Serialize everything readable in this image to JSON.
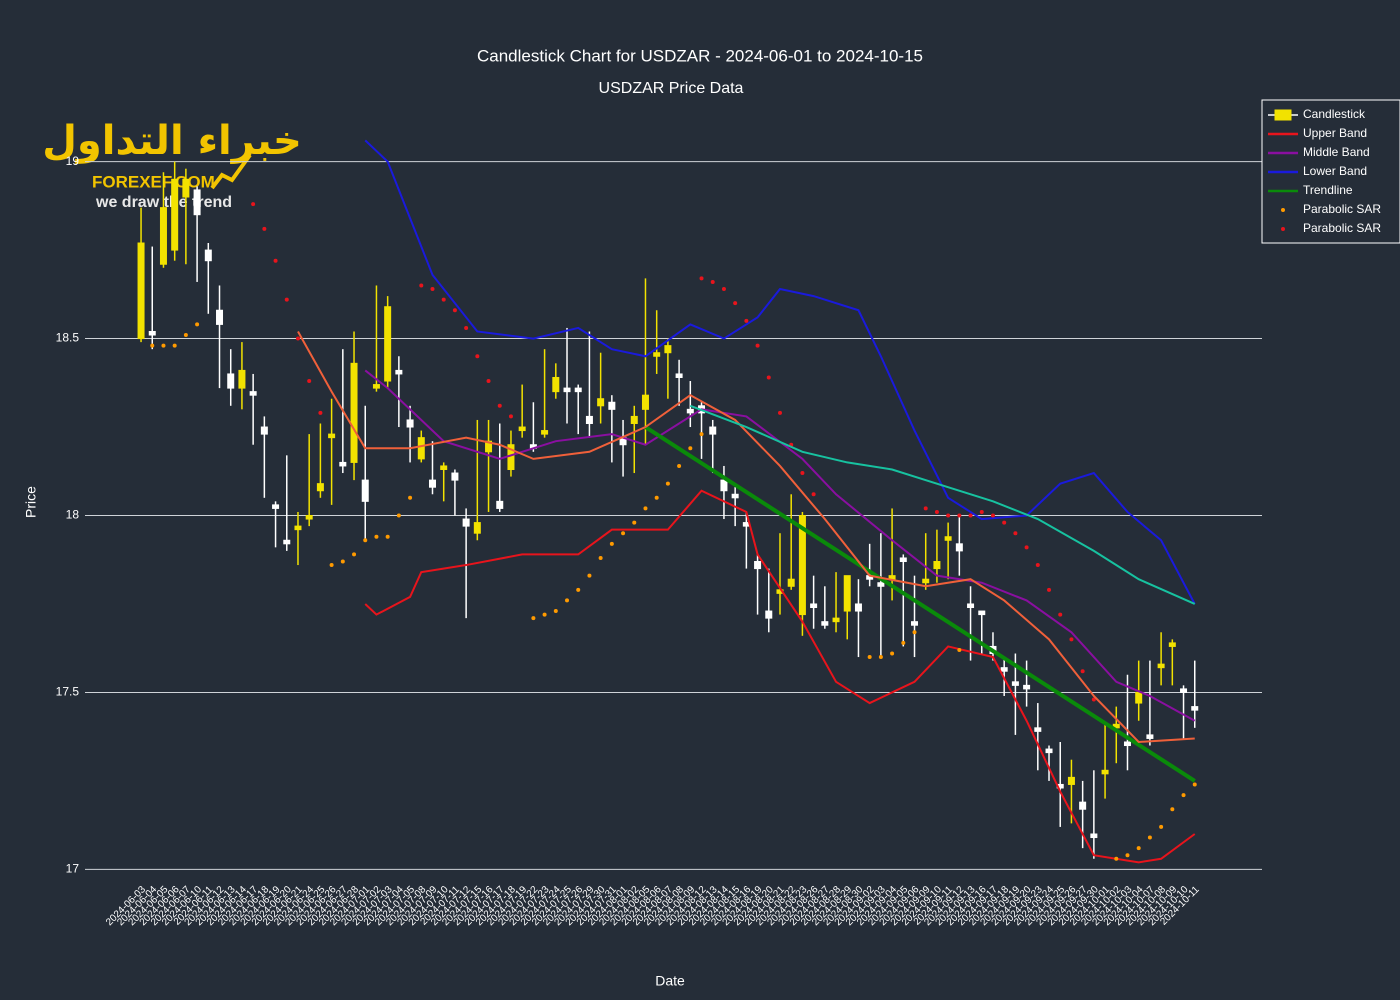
{
  "chart_data": {
    "type": "candlestick",
    "title": "Candlestick Chart for USDZAR - 2024-06-01 to 2024-10-15",
    "subtitle": "USDZAR Price Data",
    "x_label": "Date",
    "y_label": "Price",
    "name": "Candlestick",
    "increasing_color": "#f2e200",
    "decreasing_color": "#ffffff",
    "legend": "upper right",
    "grid": true,
    "ylim": [
      16.97,
      19.16
    ],
    "yticks": [
      17,
      17.5,
      18,
      18.5,
      19
    ],
    "categories": [
      "2024-06-03",
      "2024-06-04",
      "2024-06-05",
      "2024-06-06",
      "2024-06-07",
      "2024-06-10",
      "2024-06-11",
      "2024-06-12",
      "2024-06-13",
      "2024-06-14",
      "2024-06-17",
      "2024-06-18",
      "2024-06-19",
      "2024-06-20",
      "2024-06-21",
      "2024-06-24",
      "2024-06-25",
      "2024-06-26",
      "2024-06-27",
      "2024-06-28",
      "2024-07-01",
      "2024-07-02",
      "2024-07-03",
      "2024-07-04",
      "2024-07-05",
      "2024-07-08",
      "2024-07-09",
      "2024-07-10",
      "2024-07-11",
      "2024-07-12",
      "2024-07-15",
      "2024-07-16",
      "2024-07-17",
      "2024-07-18",
      "2024-07-19",
      "2024-07-22",
      "2024-07-23",
      "2024-07-24",
      "2024-07-25",
      "2024-07-26",
      "2024-07-29",
      "2024-07-30",
      "2024-07-31",
      "2024-08-01",
      "2024-08-02",
      "2024-08-05",
      "2024-08-06",
      "2024-08-07",
      "2024-08-08",
      "2024-08-09",
      "2024-08-12",
      "2024-08-13",
      "2024-08-14",
      "2024-08-15",
      "2024-08-16",
      "2024-08-19",
      "2024-08-20",
      "2024-08-21",
      "2024-08-22",
      "2024-08-23",
      "2024-08-26",
      "2024-08-27",
      "2024-08-28",
      "2024-08-29",
      "2024-08-30",
      "2024-09-02",
      "2024-09-03",
      "2024-09-04",
      "2024-09-05",
      "2024-09-06",
      "2024-09-09",
      "2024-09-10",
      "2024-09-11",
      "2024-09-12",
      "2024-09-13",
      "2024-09-16",
      "2024-09-17",
      "2024-09-18",
      "2024-09-19",
      "2024-09-20",
      "2024-09-23",
      "2024-09-24",
      "2024-09-25",
      "2024-09-26",
      "2024-09-27",
      "2024-09-30",
      "2024-10-01",
      "2024-10-02",
      "2024-10-03",
      "2024-10-04",
      "2024-10-07",
      "2024-10-08",
      "2024-10-09",
      "2024-10-10",
      "2024-10-11"
    ],
    "open": [
      18.5,
      18.52,
      18.71,
      18.75,
      18.9,
      18.92,
      18.75,
      18.58,
      18.4,
      18.36,
      18.35,
      18.25,
      18.03,
      17.93,
      17.96,
      17.99,
      18.07,
      18.22,
      18.15,
      18.15,
      18.1,
      18.36,
      18.38,
      18.41,
      18.27,
      18.16,
      18.1,
      18.13,
      18.12,
      17.99,
      17.95,
      18.18,
      18.04,
      18.13,
      18.24,
      18.2,
      18.23,
      18.35,
      18.36,
      18.36,
      18.28,
      18.31,
      18.32,
      18.22,
      18.26,
      18.3,
      18.45,
      18.46,
      18.4,
      18.3,
      18.31,
      18.25,
      18.1,
      18.06,
      17.98,
      17.87,
      17.73,
      17.78,
      17.8,
      17.72,
      17.75,
      17.7,
      17.7,
      17.73,
      17.75,
      17.83,
      17.81,
      17.82,
      17.88,
      17.7,
      17.81,
      17.85,
      17.93,
      17.92,
      17.75,
      17.73,
      17.63,
      17.57,
      17.53,
      17.52,
      17.4,
      17.34,
      17.24,
      17.24,
      17.19,
      17.1,
      17.27,
      17.4,
      17.36,
      17.47,
      17.38,
      17.57,
      17.63,
      17.51,
      17.46
    ],
    "high": [
      18.87,
      18.76,
      18.97,
      19.0,
      18.98,
      18.93,
      18.77,
      18.65,
      18.47,
      18.49,
      18.4,
      18.28,
      18.04,
      18.17,
      18.01,
      18.23,
      18.26,
      18.33,
      18.47,
      18.52,
      18.31,
      18.65,
      18.62,
      18.45,
      18.31,
      18.24,
      18.21,
      18.15,
      18.13,
      18.02,
      18.27,
      18.27,
      18.26,
      18.24,
      18.37,
      18.32,
      18.47,
      18.43,
      18.53,
      18.37,
      18.52,
      18.46,
      18.34,
      18.27,
      18.31,
      18.67,
      18.58,
      18.5,
      18.44,
      18.38,
      18.32,
      18.27,
      18.14,
      18.08,
      18.01,
      17.89,
      17.85,
      17.95,
      18.06,
      18.01,
      17.83,
      17.8,
      17.84,
      17.83,
      17.82,
      17.92,
      17.95,
      18.02,
      17.89,
      17.83,
      17.95,
      17.96,
      17.98,
      18.0,
      17.8,
      17.73,
      17.67,
      17.6,
      17.61,
      17.59,
      17.47,
      17.35,
      17.36,
      17.31,
      17.25,
      17.28,
      17.41,
      17.46,
      17.55,
      17.59,
      17.59,
      17.67,
      17.65,
      17.52,
      17.59
    ],
    "low": [
      18.49,
      18.47,
      18.7,
      18.72,
      18.71,
      18.66,
      18.57,
      18.36,
      18.31,
      18.3,
      18.2,
      18.05,
      17.91,
      17.9,
      17.86,
      17.97,
      18.05,
      18.03,
      18.12,
      18.1,
      17.93,
      18.35,
      18.36,
      18.25,
      18.15,
      18.15,
      18.06,
      18.04,
      18.0,
      17.71,
      17.93,
      18.01,
      18.01,
      18.11,
      18.22,
      18.18,
      18.22,
      18.33,
      18.26,
      18.23,
      18.22,
      18.26,
      18.15,
      18.11,
      18.12,
      18.2,
      18.4,
      18.33,
      18.31,
      18.25,
      18.16,
      18.12,
      17.99,
      17.97,
      17.85,
      17.72,
      17.67,
      17.72,
      17.79,
      17.66,
      17.68,
      17.68,
      17.67,
      17.65,
      17.6,
      17.8,
      17.6,
      17.76,
      17.63,
      17.6,
      17.79,
      17.81,
      17.82,
      17.83,
      17.59,
      17.61,
      17.59,
      17.49,
      17.38,
      17.46,
      17.28,
      17.25,
      17.12,
      17.13,
      17.06,
      17.03,
      17.2,
      17.3,
      17.28,
      17.42,
      17.35,
      17.52,
      17.52,
      17.37,
      17.4
    ],
    "close": [
      18.77,
      18.51,
      18.87,
      18.95,
      18.95,
      18.85,
      18.72,
      18.54,
      18.36,
      18.41,
      18.34,
      18.23,
      18.02,
      17.92,
      17.97,
      18.0,
      18.09,
      18.23,
      18.14,
      18.43,
      18.04,
      18.37,
      18.59,
      18.4,
      18.25,
      18.22,
      18.08,
      18.14,
      18.1,
      17.97,
      17.98,
      18.21,
      18.02,
      18.2,
      18.25,
      18.19,
      18.24,
      18.39,
      18.35,
      18.35,
      18.26,
      18.33,
      18.3,
      18.2,
      18.28,
      18.34,
      18.46,
      18.48,
      18.39,
      18.29,
      18.29,
      18.23,
      18.07,
      18.05,
      17.97,
      17.85,
      17.71,
      17.79,
      17.82,
      18.0,
      17.74,
      17.69,
      17.71,
      17.83,
      17.73,
      17.82,
      17.8,
      17.83,
      17.87,
      17.69,
      17.82,
      17.87,
      17.94,
      17.9,
      17.74,
      17.72,
      17.61,
      17.56,
      17.52,
      17.51,
      17.39,
      17.33,
      17.23,
      17.26,
      17.17,
      17.09,
      17.28,
      17.41,
      17.35,
      17.5,
      17.37,
      17.58,
      17.64,
      17.5,
      17.45
    ],
    "series": [
      {
        "name": "Upper Band",
        "mode": "line",
        "color": "#e8141c",
        "x": [
          "2024-07-01",
          "2024-07-02",
          "2024-07-05",
          "2024-07-08",
          "2024-07-12",
          "2024-07-19",
          "2024-07-26",
          "2024-07-31",
          "2024-08-07",
          "2024-08-12",
          "2024-08-16",
          "2024-08-19",
          "2024-08-23",
          "2024-08-28",
          "2024-09-02",
          "2024-09-06",
          "2024-09-11",
          "2024-09-17",
          "2024-09-20",
          "2024-09-25",
          "2024-09-30",
          "2024-10-04",
          "2024-10-08",
          "2024-10-11"
        ],
        "values": [
          17.75,
          17.72,
          17.77,
          17.84,
          17.86,
          17.89,
          17.89,
          17.96,
          17.96,
          18.07,
          18.01,
          17.89,
          17.7,
          17.53,
          17.47,
          17.53,
          17.63,
          17.6,
          17.42,
          17.22,
          17.04,
          17.02,
          17.03,
          17.1
        ]
      },
      {
        "name": "Middle Band",
        "mode": "line",
        "color": "#8a0fa0",
        "x": [
          "2024-07-01",
          "2024-07-03",
          "2024-07-10",
          "2024-07-17",
          "2024-07-24",
          "2024-07-31",
          "2024-08-05",
          "2024-08-12",
          "2024-08-16",
          "2024-08-23",
          "2024-08-28",
          "2024-09-04",
          "2024-09-10",
          "2024-09-16",
          "2024-09-20",
          "2024-09-26",
          "2024-10-02",
          "2024-10-07",
          "2024-10-11"
        ],
        "values": [
          18.41,
          18.36,
          18.21,
          18.16,
          18.21,
          18.23,
          18.2,
          18.3,
          18.28,
          18.16,
          18.06,
          17.93,
          17.83,
          17.81,
          17.76,
          17.67,
          17.53,
          17.49,
          17.42
        ]
      },
      {
        "name": "Lower Band",
        "mode": "line",
        "color": "#1a1adc",
        "x": [
          "2024-07-01",
          "2024-07-03",
          "2024-07-05",
          "2024-07-09",
          "2024-07-15",
          "2024-07-22",
          "2024-07-26",
          "2024-07-31",
          "2024-08-05",
          "2024-08-09",
          "2024-08-14",
          "2024-08-19",
          "2024-08-21",
          "2024-08-26",
          "2024-08-30",
          "2024-09-03",
          "2024-09-06",
          "2024-09-11",
          "2024-09-16",
          "2024-09-20",
          "2024-09-25",
          "2024-09-30",
          "2024-10-03",
          "2024-10-08",
          "2024-10-11"
        ],
        "values": [
          19.06,
          19.0,
          18.84,
          18.68,
          18.52,
          18.5,
          18.53,
          18.47,
          18.45,
          18.54,
          18.5,
          18.56,
          18.64,
          18.62,
          18.58,
          18.45,
          18.24,
          18.05,
          17.99,
          18.0,
          18.09,
          18.12,
          18.01,
          17.93,
          17.75
        ]
      },
      {
        "name": "Trendline",
        "mode": "line",
        "color": "#0a8a0a",
        "width": 4,
        "x": [
          "2024-08-05",
          "2024-10-11"
        ],
        "values": [
          18.25,
          17.25
        ]
      },
      {
        "name": "Parabolic SAR",
        "mode": "markers",
        "color": "#ff9a00",
        "x": [
          "2024-06-04",
          "2024-06-05",
          "2024-06-06",
          "2024-06-07",
          "2024-06-10",
          "2024-06-26",
          "2024-06-27",
          "2024-06-28",
          "2024-07-01",
          "2024-07-02",
          "2024-07-03",
          "2024-07-04",
          "2024-07-05",
          "2024-07-22",
          "2024-07-23",
          "2024-07-24",
          "2024-07-25",
          "2024-07-26",
          "2024-07-29",
          "2024-07-30",
          "2024-07-31",
          "2024-08-01",
          "2024-08-02",
          "2024-08-05",
          "2024-08-06",
          "2024-08-07",
          "2024-08-08",
          "2024-08-09",
          "2024-08-12",
          "2024-09-02",
          "2024-09-03",
          "2024-09-04",
          "2024-09-05",
          "2024-09-06",
          "2024-09-12",
          "2024-10-02",
          "2024-10-03",
          "2024-10-04",
          "2024-10-07",
          "2024-10-08",
          "2024-10-09",
          "2024-10-10",
          "2024-10-11"
        ],
        "values": [
          18.48,
          18.48,
          18.48,
          18.51,
          18.54,
          17.86,
          17.87,
          17.89,
          17.93,
          17.94,
          17.94,
          18.0,
          18.05,
          17.71,
          17.72,
          17.73,
          17.76,
          17.79,
          17.83,
          17.88,
          17.92,
          17.95,
          17.98,
          18.02,
          18.05,
          18.09,
          18.14,
          18.19,
          18.23,
          17.6,
          17.6,
          17.61,
          17.64,
          17.67,
          17.62,
          17.03,
          17.04,
          17.06,
          17.09,
          17.12,
          17.17,
          17.21,
          17.24
        ]
      },
      {
        "name": "Parabolic SAR",
        "mode": "markers",
        "color": "#e8141c",
        "x": [
          "2024-06-17",
          "2024-06-18",
          "2024-06-19",
          "2024-06-20",
          "2024-06-21",
          "2024-06-24",
          "2024-06-25",
          "2024-07-08",
          "2024-07-09",
          "2024-07-10",
          "2024-07-11",
          "2024-07-12",
          "2024-07-15",
          "2024-07-16",
          "2024-07-17",
          "2024-07-18",
          "2024-08-12",
          "2024-08-13",
          "2024-08-14",
          "2024-08-15",
          "2024-08-16",
          "2024-08-19",
          "2024-08-20",
          "2024-08-21",
          "2024-08-22",
          "2024-08-23",
          "2024-08-26",
          "2024-09-09",
          "2024-09-10",
          "2024-09-11",
          "2024-09-12",
          "2024-09-13",
          "2024-09-16",
          "2024-09-17",
          "2024-09-18",
          "2024-09-19",
          "2024-09-20",
          "2024-09-23",
          "2024-09-24",
          "2024-09-25",
          "2024-09-26",
          "2024-09-27",
          "2024-09-30"
        ],
        "values": [
          18.88,
          18.81,
          18.72,
          18.61,
          18.5,
          18.38,
          18.29,
          18.65,
          18.64,
          18.61,
          18.58,
          18.53,
          18.45,
          18.38,
          18.31,
          18.28,
          18.67,
          18.66,
          18.64,
          18.6,
          18.55,
          18.48,
          18.39,
          18.29,
          18.2,
          18.12,
          18.06,
          18.02,
          18.01,
          18.0,
          18.0,
          18.0,
          18.01,
          18.0,
          17.98,
          17.95,
          17.91,
          17.86,
          17.79,
          17.72,
          17.65,
          17.56,
          17.48
        ]
      },
      {
        "mode": "line",
        "color": "#f0603a",
        "x": [
          "2024-06-21",
          "2024-06-26",
          "2024-07-01",
          "2024-07-05",
          "2024-07-12",
          "2024-07-17",
          "2024-07-22",
          "2024-07-29",
          "2024-08-05",
          "2024-08-09",
          "2024-08-15",
          "2024-08-21",
          "2024-08-27",
          "2024-09-02",
          "2024-09-09",
          "2024-09-13",
          "2024-09-18",
          "2024-09-24",
          "2024-09-30",
          "2024-10-04",
          "2024-10-11"
        ],
        "values": [
          18.52,
          18.35,
          18.19,
          18.19,
          18.22,
          18.2,
          18.16,
          18.18,
          18.25,
          18.34,
          18.27,
          18.14,
          17.99,
          17.83,
          17.8,
          17.82,
          17.76,
          17.65,
          17.49,
          17.36,
          17.37
        ]
      },
      {
        "mode": "line",
        "color": "#17c2a0",
        "x": [
          "2024-08-09",
          "2024-08-16",
          "2024-08-23",
          "2024-08-29",
          "2024-09-04",
          "2024-09-10",
          "2024-09-17",
          "2024-09-23",
          "2024-09-30",
          "2024-10-04",
          "2024-10-11"
        ],
        "values": [
          18.31,
          18.25,
          18.18,
          18.15,
          18.13,
          18.09,
          18.04,
          17.99,
          17.9,
          17.82,
          17.75
        ]
      }
    ]
  },
  "logo": {
    "arabic": "خبراء التداول",
    "brand": "FOREXEF.COM",
    "slogan": "we draw the trend"
  }
}
